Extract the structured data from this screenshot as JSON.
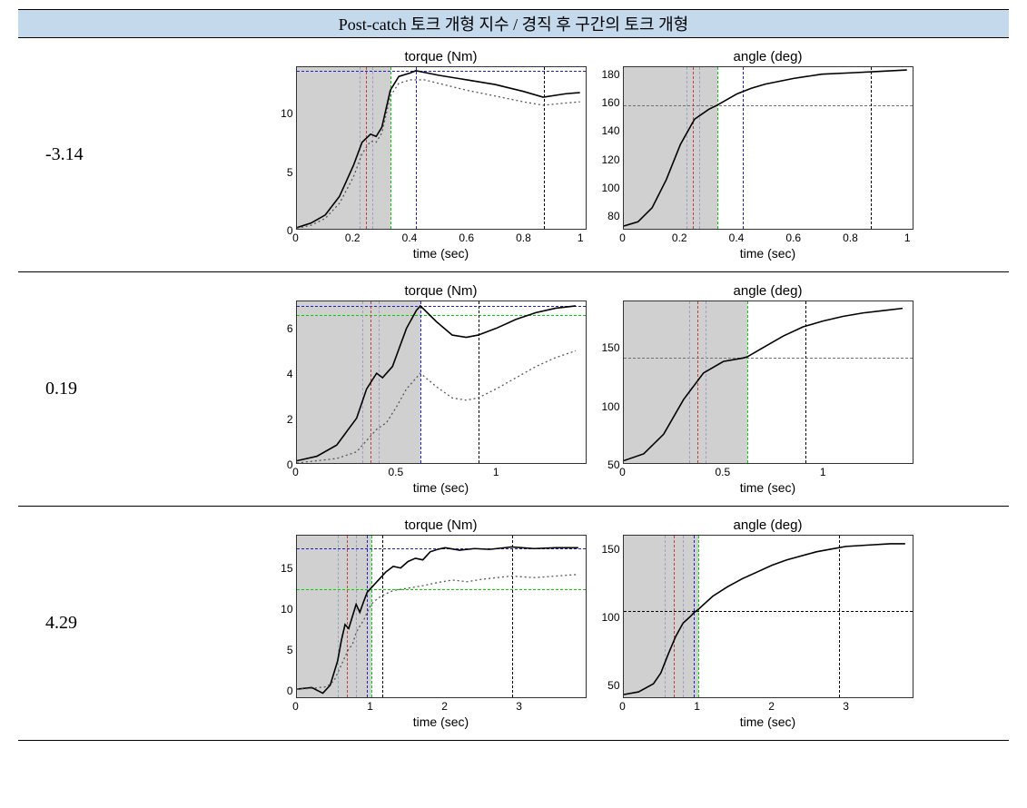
{
  "header": {
    "text": "Post-catch   토크   개형 지수 / 경직 후 구간의 토크 개형"
  },
  "colors": {
    "header_bg": "#c5d9ed",
    "plot_bg": "#ffffff",
    "shaded_bg": "#d0d0d0",
    "border": "#333333",
    "solid_line": "#000000",
    "dotted_line": "#555555",
    "blue_dash": "#2020c0",
    "green_dash": "#00d000",
    "black_dash": "#000000",
    "gray_dash": "#a0a0a0",
    "red_dash": "#c04040"
  },
  "xlabel": "time (sec)",
  "torque_title": "torque (Nm)",
  "angle_title": "angle (deg)",
  "rows": [
    {
      "label": "-3.14",
      "torque": {
        "xlim": [
          0,
          1.02
        ],
        "xticks": [
          0,
          0.2,
          0.4,
          0.6,
          0.8,
          1
        ],
        "ylim": [
          0,
          14
        ],
        "yticks": [
          0,
          5,
          10
        ],
        "shaded_to_x": 0.33,
        "vlines": [
          {
            "x": 0.22,
            "color": "#a0a0c0"
          },
          {
            "x": 0.245,
            "color": "#c04040"
          },
          {
            "x": 0.265,
            "color": "#a0a0c0"
          },
          {
            "x": 0.33,
            "color": "#00d000"
          },
          {
            "x": 0.42,
            "color": "#2020c0"
          },
          {
            "x": 0.87,
            "color": "#000000"
          }
        ],
        "hlines": [
          {
            "y": 13.7,
            "color": "#2020c0"
          }
        ],
        "solid": [
          [
            0,
            0.1
          ],
          [
            0.05,
            0.5
          ],
          [
            0.1,
            1.2
          ],
          [
            0.15,
            2.8
          ],
          [
            0.2,
            5.5
          ],
          [
            0.23,
            7.5
          ],
          [
            0.26,
            8.2
          ],
          [
            0.28,
            8.0
          ],
          [
            0.3,
            8.8
          ],
          [
            0.33,
            12.0
          ],
          [
            0.36,
            13.2
          ],
          [
            0.4,
            13.5
          ],
          [
            0.42,
            13.7
          ],
          [
            0.5,
            13.3
          ],
          [
            0.6,
            12.9
          ],
          [
            0.7,
            12.5
          ],
          [
            0.8,
            11.9
          ],
          [
            0.87,
            11.4
          ],
          [
            0.95,
            11.7
          ],
          [
            1.0,
            11.8
          ]
        ],
        "dotted": [
          [
            0,
            0.05
          ],
          [
            0.05,
            0.3
          ],
          [
            0.1,
            0.9
          ],
          [
            0.15,
            2.2
          ],
          [
            0.2,
            4.5
          ],
          [
            0.23,
            6.5
          ],
          [
            0.26,
            7.6
          ],
          [
            0.28,
            7.5
          ],
          [
            0.3,
            8.3
          ],
          [
            0.33,
            11.5
          ],
          [
            0.36,
            12.6
          ],
          [
            0.4,
            12.9
          ],
          [
            0.45,
            12.9
          ],
          [
            0.5,
            12.6
          ],
          [
            0.6,
            12.0
          ],
          [
            0.7,
            11.5
          ],
          [
            0.8,
            11.0
          ],
          [
            0.87,
            10.7
          ],
          [
            0.95,
            10.9
          ],
          [
            1.0,
            11.0
          ]
        ]
      },
      "angle": {
        "xlim": [
          0,
          1.02
        ],
        "xticks": [
          0,
          0.2,
          0.4,
          0.6,
          0.8,
          1
        ],
        "ylim": [
          70,
          185
        ],
        "yticks": [
          80,
          100,
          120,
          140,
          160,
          180
        ],
        "shaded_to_x": 0.33,
        "vlines": [
          {
            "x": 0.22,
            "color": "#a0a0c0"
          },
          {
            "x": 0.245,
            "color": "#c04040"
          },
          {
            "x": 0.265,
            "color": "#a0a0c0"
          },
          {
            "x": 0.33,
            "color": "#00d000"
          },
          {
            "x": 0.42,
            "color": "#2020c0"
          },
          {
            "x": 0.87,
            "color": "#000000"
          }
        ],
        "hlines": [
          {
            "y": 158,
            "color": "#707070"
          }
        ],
        "solid": [
          [
            0,
            72
          ],
          [
            0.05,
            75
          ],
          [
            0.1,
            85
          ],
          [
            0.15,
            105
          ],
          [
            0.2,
            130
          ],
          [
            0.25,
            148
          ],
          [
            0.3,
            155
          ],
          [
            0.33,
            158
          ],
          [
            0.4,
            166
          ],
          [
            0.45,
            170
          ],
          [
            0.5,
            173
          ],
          [
            0.6,
            177
          ],
          [
            0.7,
            180
          ],
          [
            0.8,
            181
          ],
          [
            0.9,
            182
          ],
          [
            1.0,
            183
          ]
        ]
      }
    },
    {
      "label": "0.19",
      "torque": {
        "xlim": [
          0,
          1.45
        ],
        "xticks": [
          0,
          0.5,
          1
        ],
        "ylim": [
          0,
          7.2
        ],
        "yticks": [
          0,
          2,
          4,
          6
        ],
        "shaded_to_x": 0.62,
        "vlines": [
          {
            "x": 0.33,
            "color": "#a0a0c0"
          },
          {
            "x": 0.37,
            "color": "#c04040"
          },
          {
            "x": 0.41,
            "color": "#a0a0c0"
          },
          {
            "x": 0.62,
            "color": "#00d000"
          },
          {
            "x": 0.62,
            "color": "#2020c0"
          },
          {
            "x": 0.91,
            "color": "#000000"
          }
        ],
        "hlines": [
          {
            "y": 7.0,
            "color": "#2020c0"
          },
          {
            "y": 6.6,
            "color": "#00d000"
          }
        ],
        "solid": [
          [
            0,
            0.1
          ],
          [
            0.1,
            0.3
          ],
          [
            0.2,
            0.8
          ],
          [
            0.3,
            2.0
          ],
          [
            0.35,
            3.3
          ],
          [
            0.4,
            4.0
          ],
          [
            0.43,
            3.8
          ],
          [
            0.48,
            4.3
          ],
          [
            0.55,
            6.0
          ],
          [
            0.6,
            6.8
          ],
          [
            0.62,
            7.0
          ],
          [
            0.7,
            6.3
          ],
          [
            0.78,
            5.7
          ],
          [
            0.85,
            5.6
          ],
          [
            0.91,
            5.7
          ],
          [
            1.0,
            6.0
          ],
          [
            1.1,
            6.4
          ],
          [
            1.2,
            6.7
          ],
          [
            1.3,
            6.9
          ],
          [
            1.4,
            7.0
          ]
        ],
        "dotted": [
          [
            0,
            0.0
          ],
          [
            0.1,
            0.1
          ],
          [
            0.2,
            0.2
          ],
          [
            0.3,
            0.5
          ],
          [
            0.35,
            1.0
          ],
          [
            0.4,
            1.5
          ],
          [
            0.45,
            1.8
          ],
          [
            0.5,
            2.5
          ],
          [
            0.55,
            3.3
          ],
          [
            0.6,
            3.8
          ],
          [
            0.62,
            4.0
          ],
          [
            0.7,
            3.4
          ],
          [
            0.78,
            2.9
          ],
          [
            0.85,
            2.8
          ],
          [
            0.91,
            2.9
          ],
          [
            1.0,
            3.3
          ],
          [
            1.1,
            3.8
          ],
          [
            1.2,
            4.3
          ],
          [
            1.3,
            4.7
          ],
          [
            1.4,
            5.0
          ]
        ]
      },
      "angle": {
        "xlim": [
          0,
          1.45
        ],
        "xticks": [
          0,
          0.5,
          1
        ],
        "ylim": [
          50,
          190
        ],
        "yticks": [
          50,
          100,
          150
        ],
        "shaded_to_x": 0.62,
        "vlines": [
          {
            "x": 0.33,
            "color": "#a0a0c0"
          },
          {
            "x": 0.37,
            "color": "#c04040"
          },
          {
            "x": 0.41,
            "color": "#a0a0c0"
          },
          {
            "x": 0.62,
            "color": "#00d000"
          },
          {
            "x": 0.91,
            "color": "#000000"
          }
        ],
        "hlines": [
          {
            "y": 142,
            "color": "#707070"
          }
        ],
        "solid": [
          [
            0,
            52
          ],
          [
            0.1,
            58
          ],
          [
            0.2,
            75
          ],
          [
            0.3,
            105
          ],
          [
            0.4,
            128
          ],
          [
            0.5,
            138
          ],
          [
            0.6,
            141
          ],
          [
            0.62,
            142
          ],
          [
            0.7,
            150
          ],
          [
            0.8,
            160
          ],
          [
            0.9,
            168
          ],
          [
            1.0,
            173
          ],
          [
            1.1,
            177
          ],
          [
            1.2,
            180
          ],
          [
            1.3,
            182
          ],
          [
            1.4,
            184
          ]
        ]
      }
    },
    {
      "label": "4.29",
      "torque": {
        "xlim": [
          0,
          3.9
        ],
        "xticks": [
          0,
          1,
          2,
          3
        ],
        "ylim": [
          -1,
          19
        ],
        "yticks": [
          0,
          5,
          10,
          15
        ],
        "shaded_to_x": 1.0,
        "vlines": [
          {
            "x": 0.55,
            "color": "#a0a0c0"
          },
          {
            "x": 0.68,
            "color": "#c04040"
          },
          {
            "x": 0.8,
            "color": "#a0a0c0"
          },
          {
            "x": 0.95,
            "color": "#2020c0"
          },
          {
            "x": 1.0,
            "color": "#00d000"
          },
          {
            "x": 1.15,
            "color": "#000000"
          },
          {
            "x": 2.9,
            "color": "#000000"
          }
        ],
        "hlines": [
          {
            "y": 17.5,
            "color": "#2020c0"
          },
          {
            "y": 12.5,
            "color": "#00d000"
          }
        ],
        "solid": [
          [
            0,
            0
          ],
          [
            0.2,
            0.2
          ],
          [
            0.35,
            -0.5
          ],
          [
            0.45,
            0.5
          ],
          [
            0.55,
            3.5
          ],
          [
            0.6,
            6
          ],
          [
            0.65,
            8
          ],
          [
            0.7,
            7.5
          ],
          [
            0.75,
            9
          ],
          [
            0.8,
            10.5
          ],
          [
            0.85,
            9.5
          ],
          [
            0.9,
            10.8
          ],
          [
            0.95,
            12
          ],
          [
            1.0,
            12.5
          ],
          [
            1.1,
            13.5
          ],
          [
            1.2,
            14.5
          ],
          [
            1.3,
            15.2
          ],
          [
            1.4,
            15
          ],
          [
            1.5,
            15.8
          ],
          [
            1.6,
            16.2
          ],
          [
            1.7,
            16.0
          ],
          [
            1.8,
            17
          ],
          [
            1.9,
            17.3
          ],
          [
            2.0,
            17.5
          ],
          [
            2.2,
            17.2
          ],
          [
            2.4,
            17.4
          ],
          [
            2.6,
            17.3
          ],
          [
            2.8,
            17.5
          ],
          [
            2.9,
            17.6
          ],
          [
            3.2,
            17.4
          ],
          [
            3.5,
            17.5
          ],
          [
            3.8,
            17.5
          ]
        ],
        "dotted": [
          [
            0,
            0
          ],
          [
            0.2,
            0.1
          ],
          [
            0.4,
            0.3
          ],
          [
            0.5,
            1.0
          ],
          [
            0.6,
            3.0
          ],
          [
            0.7,
            5.0
          ],
          [
            0.75,
            5.5
          ],
          [
            0.8,
            7.0
          ],
          [
            0.85,
            7.8
          ],
          [
            0.9,
            8.5
          ],
          [
            0.95,
            9.5
          ],
          [
            1.0,
            10.5
          ],
          [
            1.1,
            11.3
          ],
          [
            1.2,
            11.8
          ],
          [
            1.3,
            12.2
          ],
          [
            1.5,
            12.5
          ],
          [
            1.7,
            12.8
          ],
          [
            1.9,
            13.2
          ],
          [
            2.1,
            13.5
          ],
          [
            2.3,
            13.3
          ],
          [
            2.5,
            13.6
          ],
          [
            2.7,
            13.8
          ],
          [
            2.9,
            14.0
          ],
          [
            3.2,
            13.8
          ],
          [
            3.5,
            14.0
          ],
          [
            3.8,
            14.2
          ]
        ]
      },
      "angle": {
        "xlim": [
          0,
          3.9
        ],
        "xticks": [
          0,
          1,
          2,
          3
        ],
        "ylim": [
          40,
          160
        ],
        "yticks": [
          50,
          100,
          150
        ],
        "shaded_to_x": 1.0,
        "vlines": [
          {
            "x": 0.55,
            "color": "#a0a0c0"
          },
          {
            "x": 0.68,
            "color": "#c04040"
          },
          {
            "x": 0.8,
            "color": "#a0a0c0"
          },
          {
            "x": 0.95,
            "color": "#2020c0"
          },
          {
            "x": 1.0,
            "color": "#00d000"
          },
          {
            "x": 2.9,
            "color": "#000000"
          }
        ],
        "hlines": [
          {
            "y": 105,
            "color": "#000000"
          }
        ],
        "solid": [
          [
            0,
            42
          ],
          [
            0.2,
            44
          ],
          [
            0.4,
            50
          ],
          [
            0.5,
            58
          ],
          [
            0.6,
            72
          ],
          [
            0.7,
            85
          ],
          [
            0.8,
            95
          ],
          [
            0.9,
            100
          ],
          [
            0.95,
            103
          ],
          [
            1.0,
            105
          ],
          [
            1.2,
            115
          ],
          [
            1.4,
            122
          ],
          [
            1.6,
            128
          ],
          [
            1.8,
            133
          ],
          [
            2.0,
            138
          ],
          [
            2.2,
            142
          ],
          [
            2.4,
            145
          ],
          [
            2.6,
            148
          ],
          [
            2.8,
            150
          ],
          [
            3.0,
            152
          ],
          [
            3.3,
            153
          ],
          [
            3.6,
            154
          ],
          [
            3.8,
            154
          ]
        ]
      }
    }
  ]
}
